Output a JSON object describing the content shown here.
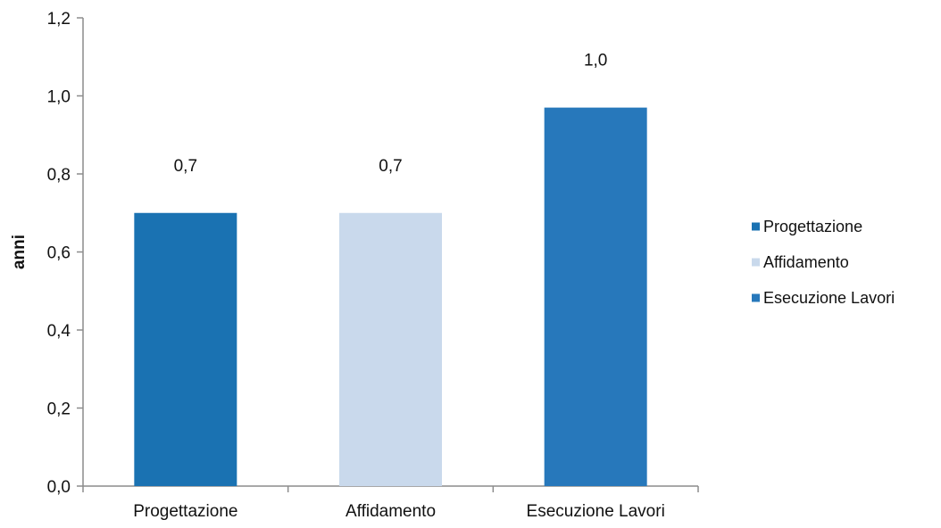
{
  "chart_data": {
    "type": "bar",
    "categories": [
      "Progettazione",
      "Affidamento",
      "Esecuzione Lavori"
    ],
    "values": [
      0.7,
      0.7,
      0.97
    ],
    "data_labels": [
      "0,7",
      "0,7",
      "1,0"
    ],
    "colors": [
      "#1a72b2",
      "#c9d9ec",
      "#2778bb"
    ],
    "ylabel": "anni",
    "ylim": [
      0,
      1.2
    ],
    "yticks": [
      0,
      0.2,
      0.4,
      0.6,
      0.8,
      1.0,
      1.2
    ],
    "ytick_labels": [
      "0,0",
      "0,2",
      "0,4",
      "0,6",
      "0,8",
      "1,0",
      "1,2"
    ],
    "legend": {
      "position": "right",
      "entries": [
        "Progettazione",
        "Affidamento",
        "Esecuzione Lavori"
      ]
    },
    "grid": false
  }
}
